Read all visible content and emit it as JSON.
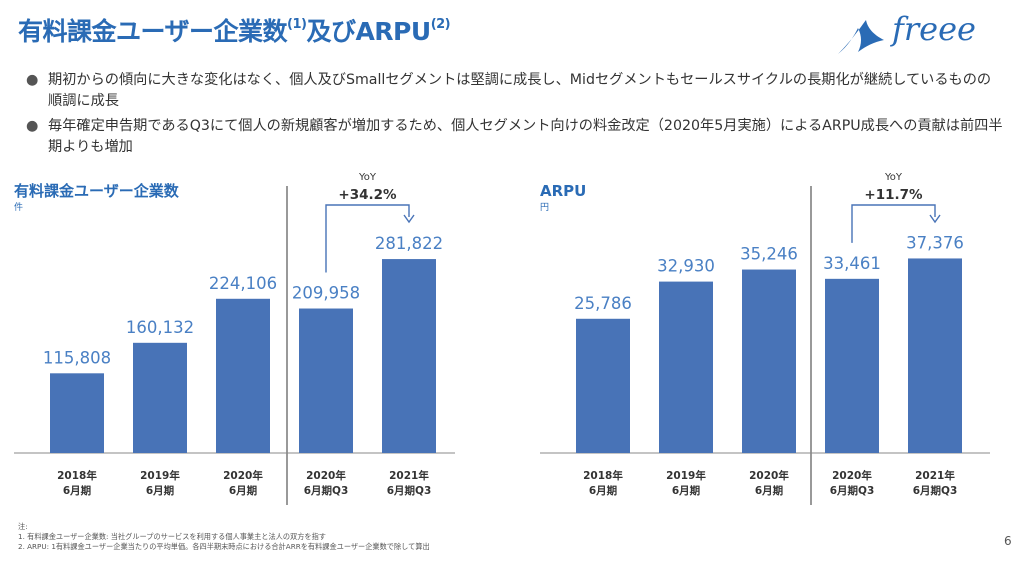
{
  "slide": {
    "title_main": "有料課金ユーザー企業数",
    "title_sup1": "(1)",
    "title_mid": "及びARPU",
    "title_sup2": "(2)",
    "logo_text": "freee",
    "bullets": [
      "期初からの傾向に大きな変化はなく、個人及びSmallセグメントは堅調に成長し、Midセグメントもセールスサイクルの長期化が継続しているものの順調に成長",
      "毎年確定申告期であるQ3にて個人の新規顧客が増加するため、個人セグメント向けの料金改定（2020年5月実施）によるARPU成長への貢献は前四半期よりも増加"
    ],
    "notes_label": "注:",
    "notes": [
      "1.  有料課金ユーザー企業数: 当社グループのサービスを利用する個人事業主と法人の双方を指す",
      "2.  ARPU: 1有料課金ユーザー企業当たりの平均単価。各四半期末時点における合計ARRを有料課金ユーザー企業数で除して算出"
    ],
    "page_number": "6"
  },
  "colors": {
    "bar": "#4873b7",
    "title": "#2a6bb5",
    "label": "#4a80c4",
    "axis_text": "#333333"
  },
  "chart_data": [
    {
      "type": "bar",
      "title": "有料課金ユーザー企業数",
      "unit": "件",
      "categories": [
        [
          "2018年",
          "6月期"
        ],
        [
          "2019年",
          "6月期"
        ],
        [
          "2020年",
          "6月期"
        ],
        [
          "2020年",
          "6月期Q3"
        ],
        [
          "2021年",
          "6月期Q3"
        ]
      ],
      "values": [
        115808,
        160132,
        224106,
        209958,
        281822
      ],
      "value_labels": [
        "115,808",
        "160,132",
        "224,106",
        "209,958",
        "281,822"
      ],
      "ylim": [
        0,
        295000
      ],
      "yoy_label": "YoY",
      "yoy_value": "+34.2%"
    },
    {
      "type": "bar",
      "title": "ARPU",
      "unit": "円",
      "categories": [
        [
          "2018年",
          "6月期"
        ],
        [
          "2019年",
          "6月期"
        ],
        [
          "2020年",
          "6月期"
        ],
        [
          "2020年",
          "6月期Q3"
        ],
        [
          "2021年",
          "6月期Q3"
        ]
      ],
      "values": [
        25786,
        32930,
        35246,
        33461,
        37376
      ],
      "value_labels": [
        "25,786",
        "32,930",
        "35,246",
        "33,461",
        "37,376"
      ],
      "ylim": [
        0,
        39000
      ],
      "yoy_label": "YoY",
      "yoy_value": "+11.7%"
    }
  ]
}
